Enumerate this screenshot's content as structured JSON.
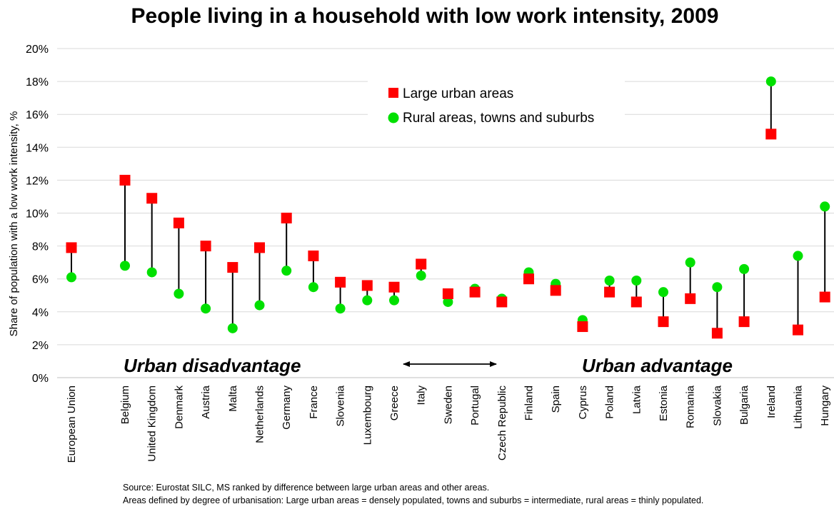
{
  "chart_data": {
    "type": "scatter",
    "title": "People living in a household with low work intensity, 2009",
    "ylabel": "Share of population with a low work intensity, %",
    "ylim": [
      0,
      20
    ],
    "yticks": [
      "0%",
      "2%",
      "4%",
      "6%",
      "8%",
      "10%",
      "12%",
      "14%",
      "16%",
      "18%",
      "20%"
    ],
    "grid": true,
    "legend_placement": "top-center",
    "categories": [
      "European Union",
      "Belgium",
      "United Kingdom",
      "Denmark",
      "Austria",
      "Malta",
      "Netherlands",
      "Germany",
      "France",
      "Slovenia",
      "Luxembourg",
      "Greece",
      "Italy",
      "Sweden",
      "Portugal",
      "Czech Republic",
      "Finland",
      "Spain",
      "Cyprus",
      "Poland",
      "Latvia",
      "Estonia",
      "Romania",
      "Slovakia",
      "Bulgaria",
      "Ireland",
      "Lithuania",
      "Hungary"
    ],
    "series": [
      {
        "name": "Large urban areas",
        "color": "#ff0000",
        "marker": "square",
        "values": [
          7.9,
          12.0,
          10.9,
          9.4,
          8.0,
          6.7,
          7.9,
          9.7,
          7.4,
          5.8,
          5.6,
          5.5,
          6.9,
          5.1,
          5.2,
          4.6,
          6.0,
          5.3,
          3.1,
          5.2,
          4.6,
          3.4,
          4.8,
          2.7,
          3.4,
          14.8,
          2.9,
          4.9
        ]
      },
      {
        "name": "Rural areas, towns and suburbs",
        "color": "#00e000",
        "marker": "circle",
        "values": [
          6.1,
          6.8,
          6.4,
          5.1,
          4.2,
          3.0,
          4.4,
          6.5,
          5.5,
          4.2,
          4.7,
          4.7,
          6.2,
          4.6,
          5.4,
          4.8,
          6.4,
          5.7,
          3.5,
          5.9,
          5.9,
          5.2,
          7.0,
          5.5,
          6.6,
          18.0,
          7.4,
          10.4
        ]
      }
    ],
    "annotations": {
      "left": "Urban disadvantage",
      "right": "Urban advantage"
    }
  },
  "source_lines": [
    "Source: Eurostat SILC, MS ranked by difference between large urban areas and other areas.",
    "Areas defined by degree of urbanisation: Large urban areas = densely populated, towns and suburbs = intermediate, rural areas = thinly populated."
  ]
}
